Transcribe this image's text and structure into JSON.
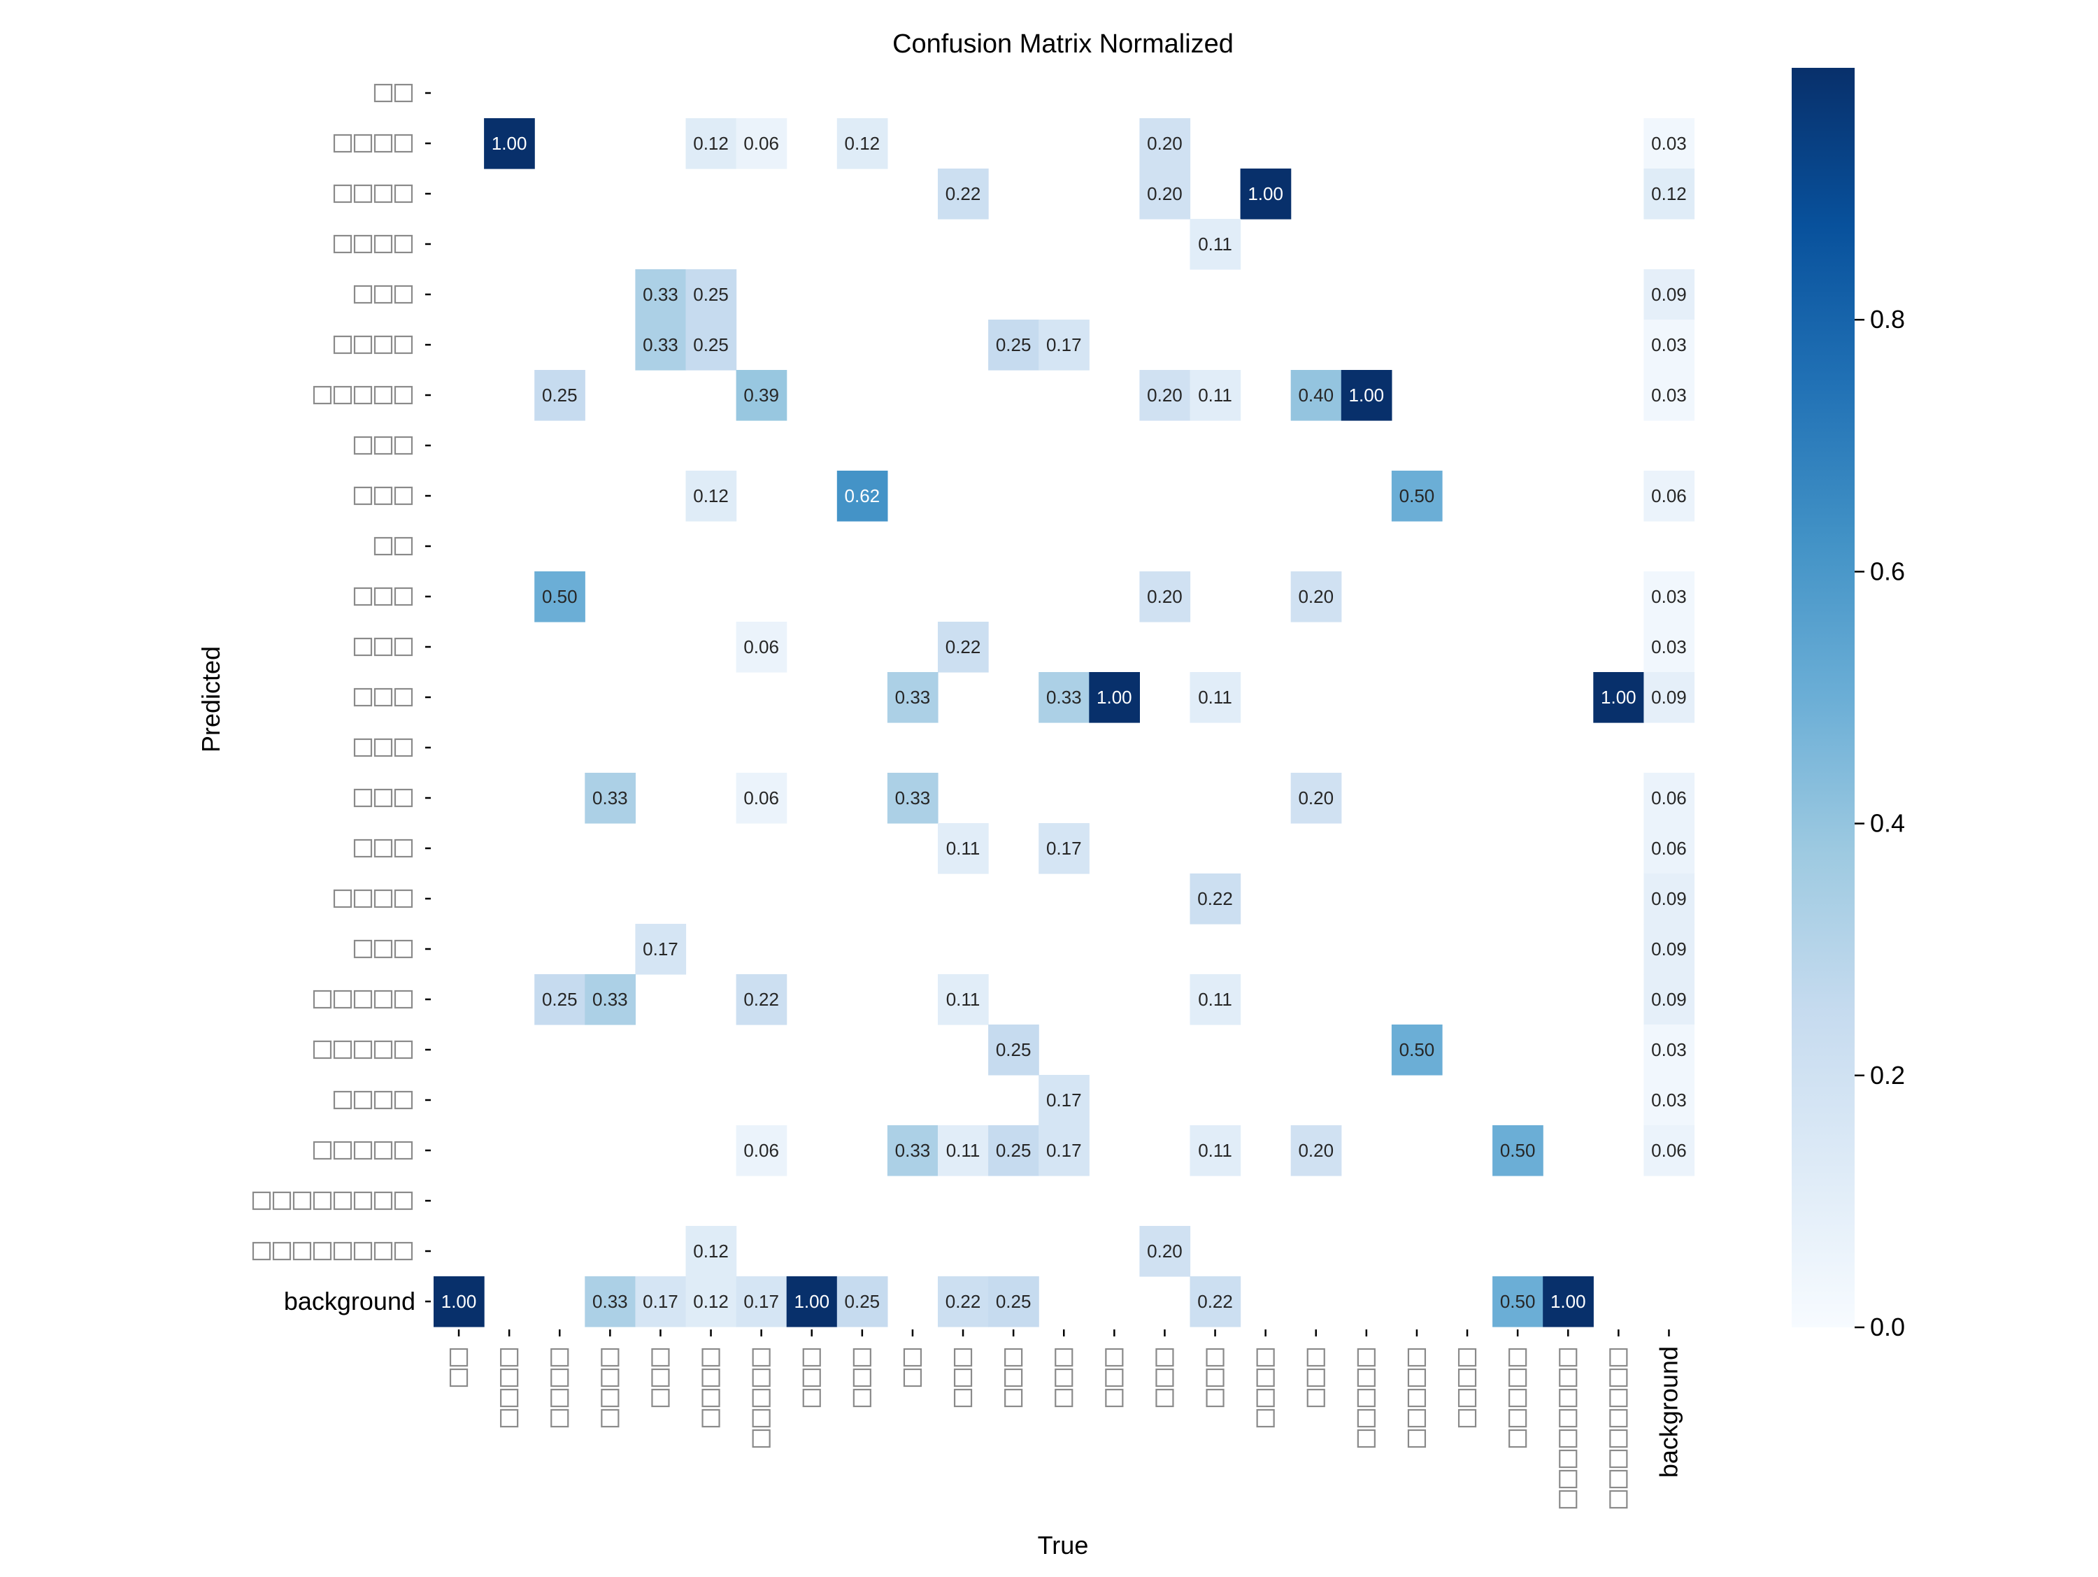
{
  "chart_data": {
    "type": "heatmap",
    "title": "Confusion Matrix Normalized",
    "xlabel": "True",
    "ylabel": "Predicted",
    "colormap": "Blues",
    "vmin": 0,
    "vmax": 1,
    "colorbar_ticks": [
      "0.0",
      "0.2",
      "0.4",
      "0.6",
      "0.8"
    ],
    "colorbar_tick_values": [
      0,
      0.2,
      0.4,
      0.6,
      0.8
    ],
    "background_label": "background",
    "glyph_counts": [
      2,
      4,
      4,
      4,
      3,
      4,
      5,
      3,
      3,
      2,
      3,
      3,
      3,
      3,
      3,
      3,
      4,
      3,
      5,
      5,
      4,
      5,
      8,
      8
    ],
    "categories": [
      "□□",
      "□□□□",
      "□□□□",
      "□□□□",
      "□□□",
      "□□□□",
      "□□□□□",
      "□□□",
      "□□□",
      "□□",
      "□□□",
      "□□□",
      "□□□",
      "□□□",
      "□□□",
      "□□□",
      "□□□□",
      "□□□",
      "□□□□□",
      "□□□□□",
      "□□□□",
      "□□□□□",
      "□□□□□□□□",
      "□□□□□□□□",
      "background"
    ],
    "values": [
      [
        null,
        null,
        null,
        null,
        null,
        null,
        null,
        null,
        null,
        null,
        null,
        null,
        null,
        null,
        null,
        null,
        null,
        null,
        null,
        null,
        null,
        null,
        null,
        null,
        null
      ],
      [
        null,
        1.0,
        null,
        null,
        null,
        0.12,
        0.06,
        null,
        0.12,
        null,
        null,
        null,
        null,
        null,
        0.2,
        null,
        null,
        null,
        null,
        null,
        null,
        null,
        null,
        null,
        0.03
      ],
      [
        null,
        null,
        null,
        null,
        null,
        null,
        null,
        null,
        null,
        null,
        0.22,
        null,
        null,
        null,
        0.2,
        null,
        1.0,
        null,
        null,
        null,
        null,
        null,
        null,
        null,
        0.12
      ],
      [
        null,
        null,
        null,
        null,
        null,
        null,
        null,
        null,
        null,
        null,
        null,
        null,
        null,
        null,
        null,
        0.11,
        null,
        null,
        null,
        null,
        null,
        null,
        null,
        null,
        null
      ],
      [
        null,
        null,
        null,
        null,
        0.33,
        0.25,
        null,
        null,
        null,
        null,
        null,
        null,
        null,
        null,
        null,
        null,
        null,
        null,
        null,
        null,
        null,
        null,
        null,
        null,
        0.09
      ],
      [
        null,
        null,
        null,
        null,
        0.33,
        0.25,
        null,
        null,
        null,
        null,
        null,
        0.25,
        0.17,
        null,
        null,
        null,
        null,
        null,
        null,
        null,
        null,
        null,
        null,
        null,
        0.03
      ],
      [
        null,
        null,
        0.25,
        null,
        null,
        null,
        0.39,
        null,
        null,
        null,
        null,
        null,
        null,
        null,
        0.2,
        0.11,
        null,
        0.4,
        1.0,
        null,
        null,
        null,
        null,
        null,
        0.03
      ],
      [
        null,
        null,
        null,
        null,
        null,
        null,
        null,
        null,
        null,
        null,
        null,
        null,
        null,
        null,
        null,
        null,
        null,
        null,
        null,
        null,
        null,
        null,
        null,
        null,
        null
      ],
      [
        null,
        null,
        null,
        null,
        null,
        0.12,
        null,
        null,
        0.62,
        null,
        null,
        null,
        null,
        null,
        null,
        null,
        null,
        null,
        null,
        0.5,
        null,
        null,
        null,
        null,
        0.06
      ],
      [
        null,
        null,
        null,
        null,
        null,
        null,
        null,
        null,
        null,
        null,
        null,
        null,
        null,
        null,
        null,
        null,
        null,
        null,
        null,
        null,
        null,
        null,
        null,
        null,
        null
      ],
      [
        null,
        null,
        0.5,
        null,
        null,
        null,
        null,
        null,
        null,
        null,
        null,
        null,
        null,
        null,
        0.2,
        null,
        null,
        0.2,
        null,
        null,
        null,
        null,
        null,
        null,
        0.03
      ],
      [
        null,
        null,
        null,
        null,
        null,
        null,
        0.06,
        null,
        null,
        null,
        0.22,
        null,
        null,
        null,
        null,
        null,
        null,
        null,
        null,
        null,
        null,
        null,
        null,
        null,
        0.03
      ],
      [
        null,
        null,
        null,
        null,
        null,
        null,
        null,
        null,
        null,
        0.33,
        null,
        null,
        0.33,
        1.0,
        null,
        0.11,
        null,
        null,
        null,
        null,
        null,
        null,
        null,
        1.0,
        0.09
      ],
      [
        null,
        null,
        null,
        null,
        null,
        null,
        null,
        null,
        null,
        null,
        null,
        null,
        null,
        null,
        null,
        null,
        null,
        null,
        null,
        null,
        null,
        null,
        null,
        null,
        null
      ],
      [
        null,
        null,
        null,
        0.33,
        null,
        null,
        0.06,
        null,
        null,
        0.33,
        null,
        null,
        null,
        null,
        null,
        null,
        null,
        0.2,
        null,
        null,
        null,
        null,
        null,
        null,
        0.06
      ],
      [
        null,
        null,
        null,
        null,
        null,
        null,
        null,
        null,
        null,
        null,
        0.11,
        null,
        0.17,
        null,
        null,
        null,
        null,
        null,
        null,
        null,
        null,
        null,
        null,
        null,
        0.06
      ],
      [
        null,
        null,
        null,
        null,
        null,
        null,
        null,
        null,
        null,
        null,
        null,
        null,
        null,
        null,
        null,
        0.22,
        null,
        null,
        null,
        null,
        null,
        null,
        null,
        null,
        0.09
      ],
      [
        null,
        null,
        null,
        null,
        0.17,
        null,
        null,
        null,
        null,
        null,
        null,
        null,
        null,
        null,
        null,
        null,
        null,
        null,
        null,
        null,
        null,
        null,
        null,
        null,
        0.09
      ],
      [
        null,
        null,
        0.25,
        0.33,
        null,
        null,
        0.22,
        null,
        null,
        null,
        0.11,
        null,
        null,
        null,
        null,
        0.11,
        null,
        null,
        null,
        null,
        null,
        null,
        null,
        null,
        0.09
      ],
      [
        null,
        null,
        null,
        null,
        null,
        null,
        null,
        null,
        null,
        null,
        null,
        0.25,
        null,
        null,
        null,
        null,
        null,
        null,
        null,
        0.5,
        null,
        null,
        null,
        null,
        0.03
      ],
      [
        null,
        null,
        null,
        null,
        null,
        null,
        null,
        null,
        null,
        null,
        null,
        null,
        0.17,
        null,
        null,
        null,
        null,
        null,
        null,
        null,
        null,
        null,
        null,
        null,
        0.03
      ],
      [
        null,
        null,
        null,
        null,
        null,
        null,
        0.06,
        null,
        null,
        0.33,
        0.11,
        0.25,
        0.17,
        null,
        null,
        0.11,
        null,
        0.2,
        null,
        null,
        null,
        0.5,
        null,
        null,
        0.06
      ],
      [
        null,
        null,
        null,
        null,
        null,
        null,
        null,
        null,
        null,
        null,
        null,
        null,
        null,
        null,
        null,
        null,
        null,
        null,
        null,
        null,
        null,
        null,
        null,
        null,
        null
      ],
      [
        null,
        null,
        null,
        null,
        null,
        0.12,
        null,
        null,
        null,
        null,
        null,
        null,
        null,
        null,
        0.2,
        null,
        null,
        null,
        null,
        null,
        null,
        null,
        null,
        null,
        null
      ],
      [
        1.0,
        null,
        null,
        0.33,
        0.17,
        0.12,
        0.17,
        1.0,
        0.25,
        null,
        0.22,
        0.25,
        null,
        null,
        null,
        0.22,
        null,
        null,
        null,
        null,
        null,
        0.5,
        1.0,
        null,
        null
      ]
    ]
  }
}
